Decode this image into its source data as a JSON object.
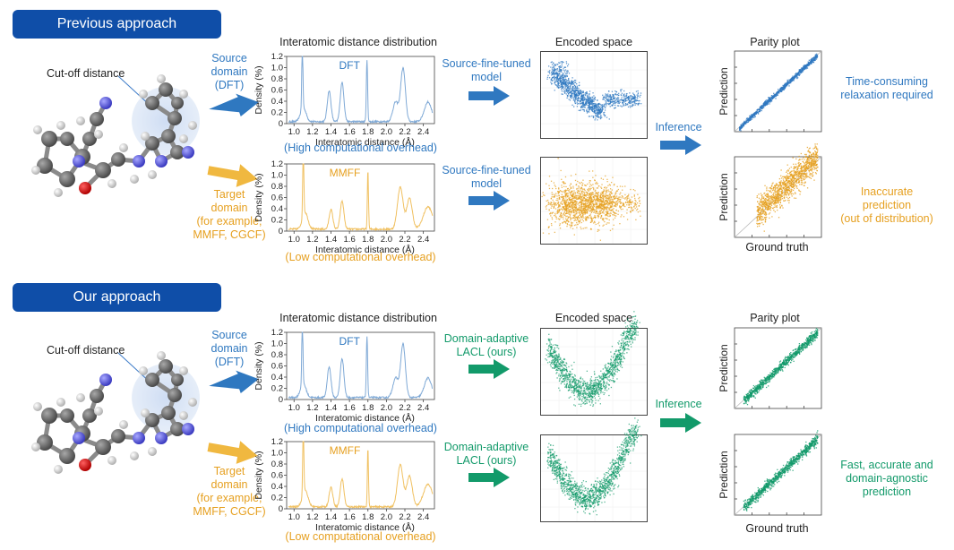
{
  "sections": {
    "previous": "Previous approach",
    "ours": "Our approach"
  },
  "molecule": {
    "cutoff_label": "Cut-off distance"
  },
  "domains": {
    "source": [
      "Source",
      "domain",
      "(DFT)"
    ],
    "target": [
      "Target",
      "domain",
      "(for example,",
      "MMFF, CGCF)"
    ]
  },
  "distribution": {
    "title": "Interatomic distance distribution",
    "ylabel": "Density (%)",
    "xlabel": "Interatomic distance (Å)",
    "yticks": [
      "0",
      "0.2",
      "0.4",
      "0.6",
      "0.8",
      "1.0",
      "1.2"
    ],
    "xticks": [
      "1.0",
      "1.2",
      "1.4",
      "1.6",
      "1.8",
      "2.0",
      "2.2",
      "2.4"
    ],
    "dft_label": "DFT",
    "mmff_label": "MMFF",
    "dft_caption": "(High computational overhead)",
    "mmff_caption": "(Low computational overhead)"
  },
  "models": {
    "source_finetuned": [
      "Source-fine-tuned",
      "model"
    ],
    "domain_adaptive": [
      "Domain-adaptive",
      "LACL (ours)"
    ]
  },
  "encoded": {
    "title": "Encoded space"
  },
  "inference": "Inference",
  "parity": {
    "title": "Parity plot",
    "xlabel": "Ground truth",
    "ylabel": "Prediction"
  },
  "outcomes": {
    "prev_source": [
      "Time-consuming",
      "relaxation required"
    ],
    "prev_target": [
      "Inaccurate",
      "prediction",
      "(out of distribution)"
    ],
    "ours": [
      "Fast, accurate and",
      "domain-agnostic",
      "prediction"
    ]
  },
  "colors": {
    "banner": "#0f4ea8",
    "blue": "#2f78c0",
    "orange": "#e6a020",
    "green": "#129a6a"
  }
}
